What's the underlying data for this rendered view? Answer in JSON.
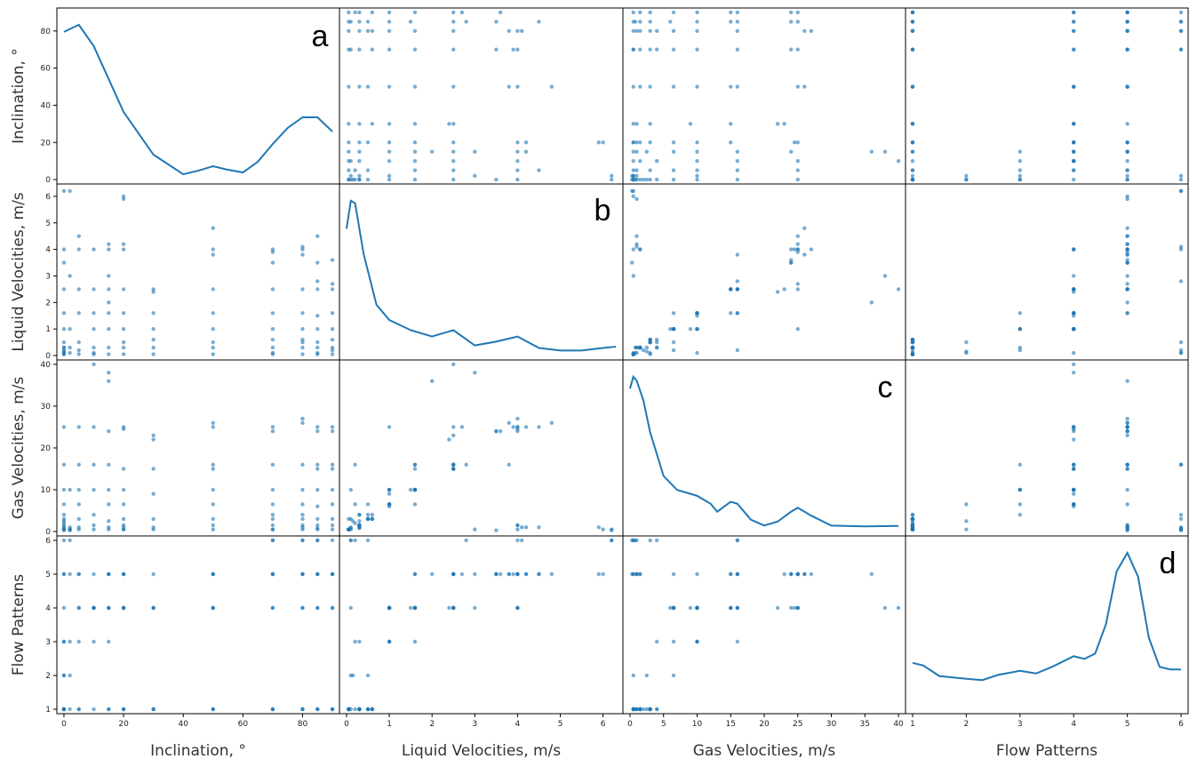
{
  "colors": {
    "series": "#1f77b4",
    "frame": "#000000",
    "background": "#ffffff"
  },
  "chart_data": {
    "type": "scatter-matrix",
    "variables": [
      "Inclination, °",
      "Liquid Velocities, m/s",
      "Gas Velocities, m/s",
      "Flow Patterns"
    ],
    "panel_labels": [
      "a",
      "b",
      "c",
      "d"
    ],
    "ranges": [
      [
        0,
        90
      ],
      [
        0,
        6.3
      ],
      [
        0,
        40
      ],
      [
        1,
        6
      ]
    ],
    "x_ticks": [
      [
        0,
        20,
        40,
        60,
        80
      ],
      [
        0,
        1,
        2,
        3,
        4,
        5,
        6
      ],
      [
        0,
        5,
        10,
        15,
        20,
        25,
        30,
        35,
        40
      ],
      [
        1,
        2,
        3,
        4,
        5,
        6
      ]
    ],
    "y_ticks": [
      [
        0,
        20,
        40,
        60,
        80
      ],
      [
        0,
        1,
        2,
        3,
        4,
        5,
        6
      ],
      [
        0,
        10,
        20,
        30,
        40
      ],
      [
        1,
        2,
        3,
        4,
        5,
        6
      ]
    ],
    "records": [
      [
        0,
        0.05,
        0.5,
        1
      ],
      [
        0,
        0.1,
        1.0,
        1
      ],
      [
        0,
        0.2,
        2.0,
        1
      ],
      [
        0,
        0.3,
        4.0,
        1
      ],
      [
        0,
        0.5,
        6.5,
        2
      ],
      [
        0,
        1.0,
        10.0,
        3
      ],
      [
        0,
        1.6,
        16.0,
        3
      ],
      [
        0,
        2.5,
        25.0,
        4
      ],
      [
        0,
        3.5,
        0.3,
        5
      ],
      [
        0,
        4.0,
        1.5,
        5
      ],
      [
        0,
        6.2,
        0.5,
        6
      ],
      [
        0,
        0.05,
        3.0,
        1
      ],
      [
        0,
        0.3,
        0.8,
        1
      ],
      [
        0,
        0.15,
        2.5,
        2
      ],
      [
        2,
        0.3,
        1.0,
        1
      ],
      [
        2,
        1.0,
        10.0,
        3
      ],
      [
        2,
        6.2,
        0.3,
        6
      ],
      [
        2,
        3.0,
        0.5,
        5
      ],
      [
        2,
        0.1,
        0.5,
        2
      ],
      [
        5,
        0.05,
        0.5,
        1
      ],
      [
        5,
        0.5,
        3.0,
        1
      ],
      [
        5,
        2.5,
        16.0,
        4
      ],
      [
        5,
        4.0,
        25.0,
        4
      ],
      [
        5,
        0.2,
        6.5,
        3
      ],
      [
        5,
        1.6,
        10.0,
        5
      ],
      [
        5,
        4.5,
        1.0,
        5
      ],
      [
        10,
        0.05,
        0.5,
        1
      ],
      [
        10,
        0.3,
        4.0,
        3
      ],
      [
        10,
        1.0,
        25.0,
        4
      ],
      [
        10,
        2.5,
        40.0,
        4
      ],
      [
        10,
        4.0,
        1.5,
        5
      ],
      [
        10,
        0.1,
        10.0,
        4
      ],
      [
        10,
        1.6,
        16.0,
        4
      ],
      [
        15,
        0.05,
        0.5,
        1
      ],
      [
        15,
        0.3,
        2.5,
        1
      ],
      [
        15,
        1.0,
        10.0,
        3
      ],
      [
        15,
        2.5,
        16.0,
        4
      ],
      [
        15,
        4.0,
        24.0,
        4
      ],
      [
        15,
        3.0,
        38.0,
        4
      ],
      [
        15,
        1.6,
        6.5,
        5
      ],
      [
        15,
        4.2,
        1.0,
        5
      ],
      [
        15,
        2.0,
        36.0,
        5
      ],
      [
        20,
        0.05,
        0.5,
        1
      ],
      [
        20,
        0.3,
        1.5,
        1
      ],
      [
        20,
        0.5,
        3.0,
        1
      ],
      [
        20,
        1.0,
        6.5,
        4
      ],
      [
        20,
        1.6,
        10.0,
        4
      ],
      [
        20,
        2.5,
        15.0,
        4
      ],
      [
        20,
        4.0,
        24.5,
        4
      ],
      [
        20,
        6.0,
        0.5,
        5
      ],
      [
        20,
        5.9,
        1.0,
        5
      ],
      [
        20,
        4.2,
        25.0,
        5
      ],
      [
        30,
        0.05,
        0.5,
        1
      ],
      [
        30,
        0.3,
        1.0,
        1
      ],
      [
        30,
        0.6,
        3.0,
        1
      ],
      [
        30,
        1.0,
        9.0,
        4
      ],
      [
        30,
        1.6,
        15.0,
        4
      ],
      [
        30,
        2.4,
        22.0,
        4
      ],
      [
        30,
        2.5,
        23.0,
        5
      ],
      [
        50,
        0.05,
        0.5,
        1
      ],
      [
        50,
        0.3,
        1.5,
        1
      ],
      [
        50,
        0.5,
        3.0,
        1
      ],
      [
        50,
        1.0,
        6.5,
        4
      ],
      [
        50,
        1.6,
        10.0,
        4
      ],
      [
        50,
        2.5,
        15.0,
        4
      ],
      [
        50,
        3.8,
        16.0,
        5
      ],
      [
        50,
        4.0,
        25.0,
        5
      ],
      [
        50,
        4.8,
        26.0,
        5
      ],
      [
        70,
        0.05,
        0.5,
        1
      ],
      [
        70,
        0.3,
        1.5,
        1
      ],
      [
        70,
        0.6,
        4.0,
        1
      ],
      [
        70,
        1.0,
        6.5,
        4
      ],
      [
        70,
        1.6,
        10.0,
        4
      ],
      [
        70,
        2.5,
        16.0,
        5
      ],
      [
        70,
        3.5,
        24.0,
        5
      ],
      [
        70,
        3.9,
        25.0,
        5
      ],
      [
        70,
        4.0,
        0.5,
        6
      ],
      [
        70,
        0.1,
        3.0,
        6
      ],
      [
        80,
        0.05,
        0.5,
        1
      ],
      [
        80,
        0.3,
        1.5,
        1
      ],
      [
        80,
        0.6,
        3.0,
        1
      ],
      [
        80,
        1.0,
        6.5,
        4
      ],
      [
        80,
        1.6,
        10.0,
        4
      ],
      [
        80,
        2.5,
        16.0,
        5
      ],
      [
        80,
        3.8,
        26.0,
        5
      ],
      [
        80,
        4.0,
        27.0,
        5
      ],
      [
        80,
        4.1,
        1.0,
        6
      ],
      [
        80,
        0.5,
        4.0,
        6
      ],
      [
        85,
        0.05,
        0.5,
        1
      ],
      [
        85,
        0.3,
        1.5,
        1
      ],
      [
        85,
        0.5,
        3.0,
        1
      ],
      [
        85,
        1.0,
        6.0,
        4
      ],
      [
        85,
        1.5,
        10.0,
        4
      ],
      [
        85,
        2.5,
        15.0,
        5
      ],
      [
        85,
        3.5,
        24.0,
        5
      ],
      [
        85,
        4.5,
        25.0,
        5
      ],
      [
        85,
        2.8,
        16.0,
        6
      ],
      [
        85,
        0.1,
        0.8,
        6
      ],
      [
        90,
        0.05,
        0.5,
        1
      ],
      [
        90,
        0.3,
        1.5,
        1
      ],
      [
        90,
        0.6,
        3.0,
        1
      ],
      [
        90,
        1.0,
        6.5,
        4
      ],
      [
        90,
        1.6,
        10.0,
        4
      ],
      [
        90,
        2.5,
        15.0,
        5
      ],
      [
        90,
        3.6,
        24.0,
        5
      ],
      [
        90,
        2.7,
        25.0,
        5
      ],
      [
        90,
        0.2,
        16.0,
        6
      ]
    ],
    "kde": [
      {
        "x": [
          0,
          5,
          10,
          20,
          30,
          40,
          45,
          50,
          55,
          60,
          65,
          70,
          75,
          80,
          85,
          90
        ],
        "y": [
          83,
          87,
          75,
          38,
          14,
          3,
          5,
          7.5,
          5.5,
          4,
          10,
          20,
          29,
          35,
          35,
          27
        ]
      },
      {
        "x": [
          0,
          0.1,
          0.2,
          0.4,
          0.7,
          1.0,
          1.5,
          2.0,
          2.5,
          3.0,
          3.5,
          4.0,
          4.5,
          5.0,
          5.5,
          6.0,
          6.3
        ],
        "y": [
          5.0,
          6.1,
          6.0,
          4.0,
          2.0,
          1.4,
          1.0,
          0.75,
          1.0,
          0.4,
          0.55,
          0.75,
          0.3,
          0.2,
          0.2,
          0.3,
          0.35
        ]
      },
      {
        "x": [
          0,
          0.5,
          1,
          2,
          3,
          5,
          7,
          9,
          10,
          12,
          13,
          15,
          16,
          18,
          20,
          22,
          24,
          25,
          27,
          30,
          35,
          40
        ],
        "y": [
          36,
          39,
          38,
          33,
          25,
          14,
          10.5,
          9.5,
          9,
          7,
          5,
          7.5,
          7,
          3,
          1.5,
          2.5,
          5,
          6,
          4,
          1.5,
          1.3,
          1.4
        ]
      },
      {
        "x": [
          1,
          1.2,
          1.5,
          2,
          2.3,
          2.6,
          3,
          3.3,
          3.6,
          4,
          4.2,
          4.4,
          4.6,
          4.8,
          5,
          5.2,
          5.4,
          5.6,
          5.8,
          6
        ],
        "y": [
          1.75,
          1.65,
          1.25,
          1.15,
          1.1,
          1.3,
          1.45,
          1.35,
          1.6,
          2.0,
          1.9,
          2.1,
          3.2,
          5.2,
          5.9,
          5.0,
          2.7,
          1.6,
          1.5,
          1.5
        ]
      }
    ]
  }
}
